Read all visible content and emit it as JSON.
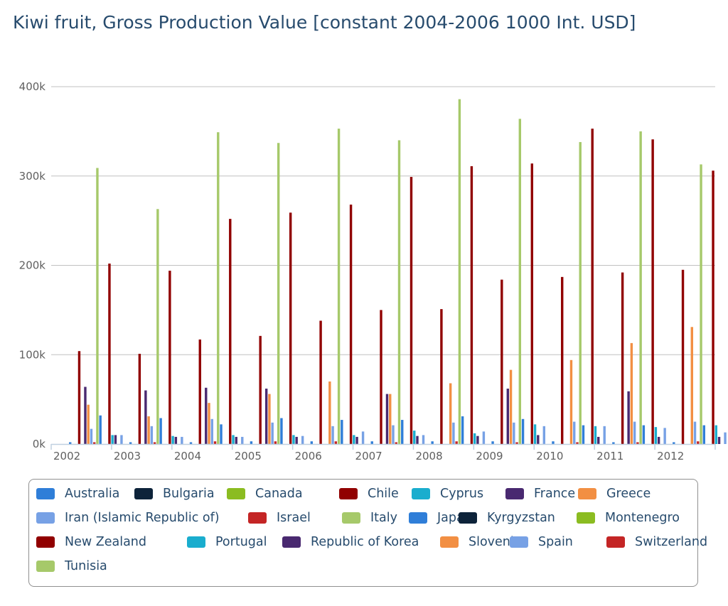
{
  "chart_data": {
    "type": "bar",
    "title": "Kiwi fruit, Gross Production Value [constant 2004-2006 1000 Int. USD]",
    "xlabel": "",
    "ylabel": "",
    "categories": [
      "2002",
      "2003",
      "2004",
      "2005",
      "2006",
      "2007",
      "2008",
      "2009",
      "2010",
      "2011",
      "2012"
    ],
    "ylim": [
      0,
      400000
    ],
    "yticks": [
      0,
      100000,
      200000,
      300000,
      400000
    ],
    "ytick_labels": [
      "0k",
      "100k",
      "200k",
      "300k",
      "400k"
    ],
    "grid": true,
    "legend": "bottom",
    "series": [
      {
        "name": "Australia",
        "color": "#2f7ed8",
        "values": [
          2000,
          2000,
          2000,
          3000,
          3000,
          3000,
          3000,
          3000,
          3000,
          2000,
          2000
        ]
      },
      {
        "name": "Bulgaria",
        "color": "#0d233a",
        "values": [
          0,
          0,
          0,
          0,
          0,
          0,
          0,
          0,
          0,
          0,
          0
        ]
      },
      {
        "name": "Canada",
        "color": "#8bbc21",
        "values": [
          0,
          0,
          0,
          0,
          0,
          0,
          0,
          0,
          0,
          0,
          0
        ]
      },
      {
        "name": "Chile",
        "color": "#910000",
        "values": [
          104000,
          101000,
          117000,
          121000,
          138000,
          150000,
          151000,
          184000,
          187000,
          192000,
          195000
        ]
      },
      {
        "name": "Cyprus",
        "color": "#1aadce",
        "values": [
          0,
          0,
          0,
          0,
          0,
          0,
          0,
          0,
          0,
          0,
          0
        ]
      },
      {
        "name": "France",
        "color": "#492970",
        "values": [
          64000,
          60000,
          63000,
          62000,
          0,
          56000,
          0,
          62000,
          0,
          59000,
          0
        ]
      },
      {
        "name": "Greece",
        "color": "#f28f43",
        "values": [
          44000,
          31000,
          46000,
          56000,
          70000,
          56000,
          68000,
          83000,
          94000,
          113000,
          131000
        ]
      },
      {
        "name": "Iran (Islamic Republic of)",
        "color": "#77a1e5",
        "values": [
          17000,
          20000,
          28000,
          24000,
          20000,
          21000,
          24000,
          24000,
          25000,
          25000,
          25000
        ]
      },
      {
        "name": "Israel",
        "color": "#c42525",
        "values": [
          2000,
          2000,
          3000,
          3000,
          3000,
          2000,
          3000,
          2000,
          2000,
          2000,
          3000
        ]
      },
      {
        "name": "Italy",
        "color": "#a6c96a",
        "values": [
          309000,
          263000,
          349000,
          337000,
          353000,
          340000,
          386000,
          364000,
          338000,
          350000,
          313000
        ]
      },
      {
        "name": "Japan",
        "color": "#2f7ed8",
        "values": [
          32000,
          29000,
          22000,
          29000,
          27000,
          27000,
          31000,
          28000,
          21000,
          21000,
          21000
        ]
      },
      {
        "name": "Kyrgyzstan",
        "color": "#0d233a",
        "values": [
          0,
          0,
          0,
          0,
          0,
          0,
          0,
          0,
          0,
          0,
          0
        ]
      },
      {
        "name": "Montenegro",
        "color": "#8bbc21",
        "values": [
          0,
          0,
          0,
          0,
          0,
          0,
          0,
          0,
          0,
          0,
          0
        ]
      },
      {
        "name": "New Zealand",
        "color": "#910000",
        "values": [
          202000,
          194000,
          252000,
          259000,
          268000,
          299000,
          311000,
          314000,
          353000,
          341000,
          306000
        ]
      },
      {
        "name": "Portugal",
        "color": "#1aadce",
        "values": [
          10000,
          9000,
          10000,
          10000,
          10000,
          15000,
          12000,
          22000,
          20000,
          19000,
          21000
        ]
      },
      {
        "name": "Republic of Korea",
        "color": "#492970",
        "values": [
          10000,
          8000,
          8000,
          8000,
          8000,
          9000,
          9000,
          10000,
          8000,
          8000,
          8000
        ]
      },
      {
        "name": "Slovenia",
        "color": "#f28f43",
        "values": [
          0,
          0,
          0,
          0,
          0,
          0,
          0,
          0,
          0,
          0,
          0
        ]
      },
      {
        "name": "Spain",
        "color": "#77a1e5",
        "values": [
          10000,
          8000,
          8000,
          9000,
          14000,
          10000,
          14000,
          20000,
          20000,
          18000,
          13000
        ]
      },
      {
        "name": "Switzerland",
        "color": "#c42525",
        "values": [
          0,
          0,
          0,
          0,
          0,
          0,
          0,
          0,
          0,
          0,
          0
        ]
      },
      {
        "name": "Tunisia",
        "color": "#a6c96a",
        "values": [
          0,
          0,
          0,
          0,
          0,
          0,
          0,
          0,
          0,
          0,
          0
        ]
      }
    ]
  }
}
